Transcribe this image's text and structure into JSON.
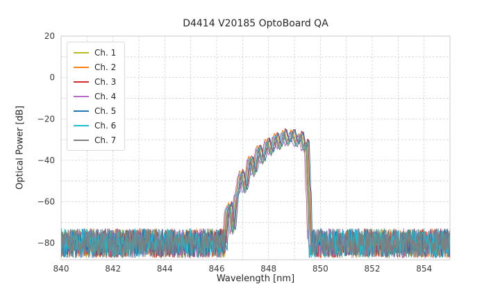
{
  "chart_data": {
    "type": "line",
    "title": "D4414 V20185 OptoBoard QA",
    "xlabel": "Wavelength [nm]",
    "ylabel": "Optical Power [dB]",
    "xlim": [
      840,
      855
    ],
    "ylim": [
      -88,
      20
    ],
    "xticks": [
      840,
      842,
      844,
      846,
      848,
      850,
      852,
      854
    ],
    "yticks": [
      20,
      0,
      -20,
      -40,
      -60,
      -80
    ],
    "grid": {
      "x_step_nm": 1,
      "y_step_db": 10,
      "color": "#cccccc",
      "style": "dashed"
    },
    "legend_position": "upper-left",
    "noise_floor": {
      "mean_db": -80,
      "peak_to_peak_db": 14
    },
    "band": {
      "start_nm": 846.3,
      "stop_nm": 849.6,
      "peak_db": -26,
      "peak_wavelength_nm": 848.9
    },
    "envelope": [
      [
        846.28,
        -87
      ],
      [
        846.42,
        -63
      ],
      [
        846.52,
        -61
      ],
      [
        846.62,
        -74
      ],
      [
        846.78,
        -56
      ],
      [
        846.95,
        -45.5
      ],
      [
        847.1,
        -54
      ],
      [
        847.3,
        -38.5
      ],
      [
        847.45,
        -46
      ],
      [
        847.62,
        -33.5
      ],
      [
        847.78,
        -40
      ],
      [
        847.95,
        -30
      ],
      [
        848.1,
        -36
      ],
      [
        848.28,
        -27.5
      ],
      [
        848.43,
        -33
      ],
      [
        848.6,
        -26
      ],
      [
        848.75,
        -31.5
      ],
      [
        848.93,
        -25.8
      ],
      [
        849.08,
        -32
      ],
      [
        849.25,
        -27
      ],
      [
        849.38,
        -34
      ],
      [
        849.47,
        -31
      ],
      [
        849.55,
        -55
      ],
      [
        849.62,
        -87
      ]
    ],
    "series": [
      {
        "name": "Ch. 1",
        "color": "#bcbd22",
        "offset_nm": 0.02,
        "level_db": -0.5
      },
      {
        "name": "Ch. 2",
        "color": "#ff7f0e",
        "offset_nm": -0.06,
        "level_db": 0.0
      },
      {
        "name": "Ch. 3",
        "color": "#d62728",
        "offset_nm": 0.05,
        "level_db": 0.8
      },
      {
        "name": "Ch. 4",
        "color": "#bb6bc9",
        "offset_nm": -0.1,
        "level_db": -1.2
      },
      {
        "name": "Ch. 5",
        "color": "#1f77b4",
        "offset_nm": 0.09,
        "level_db": 0.3
      },
      {
        "name": "Ch. 6",
        "color": "#17becf",
        "offset_nm": -0.03,
        "level_db": -0.8
      },
      {
        "name": "Ch. 7",
        "color": "#7f7f7f",
        "offset_nm": 0.0,
        "level_db": -1.5
      }
    ]
  }
}
